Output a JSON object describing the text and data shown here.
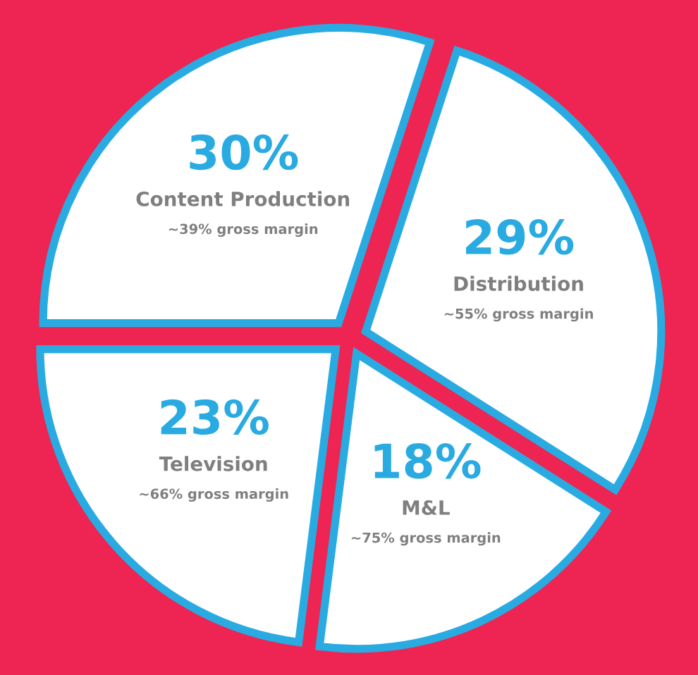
{
  "chart_data": {
    "type": "pie",
    "categories": [
      "Content Production",
      "Distribution",
      "M&L",
      "Television"
    ],
    "values": [
      30,
      29,
      18,
      23
    ],
    "value_labels": [
      "30%",
      "29%",
      "18%",
      "23%"
    ],
    "colors": [
      "#ffffff",
      "#ffffff",
      "#ffffff",
      "#ffffff"
    ],
    "annotations": [
      "~39% gross margin",
      "~55% gross margin",
      "~75% gross margin",
      "~66% gross margin"
    ],
    "legend": false
  }
}
